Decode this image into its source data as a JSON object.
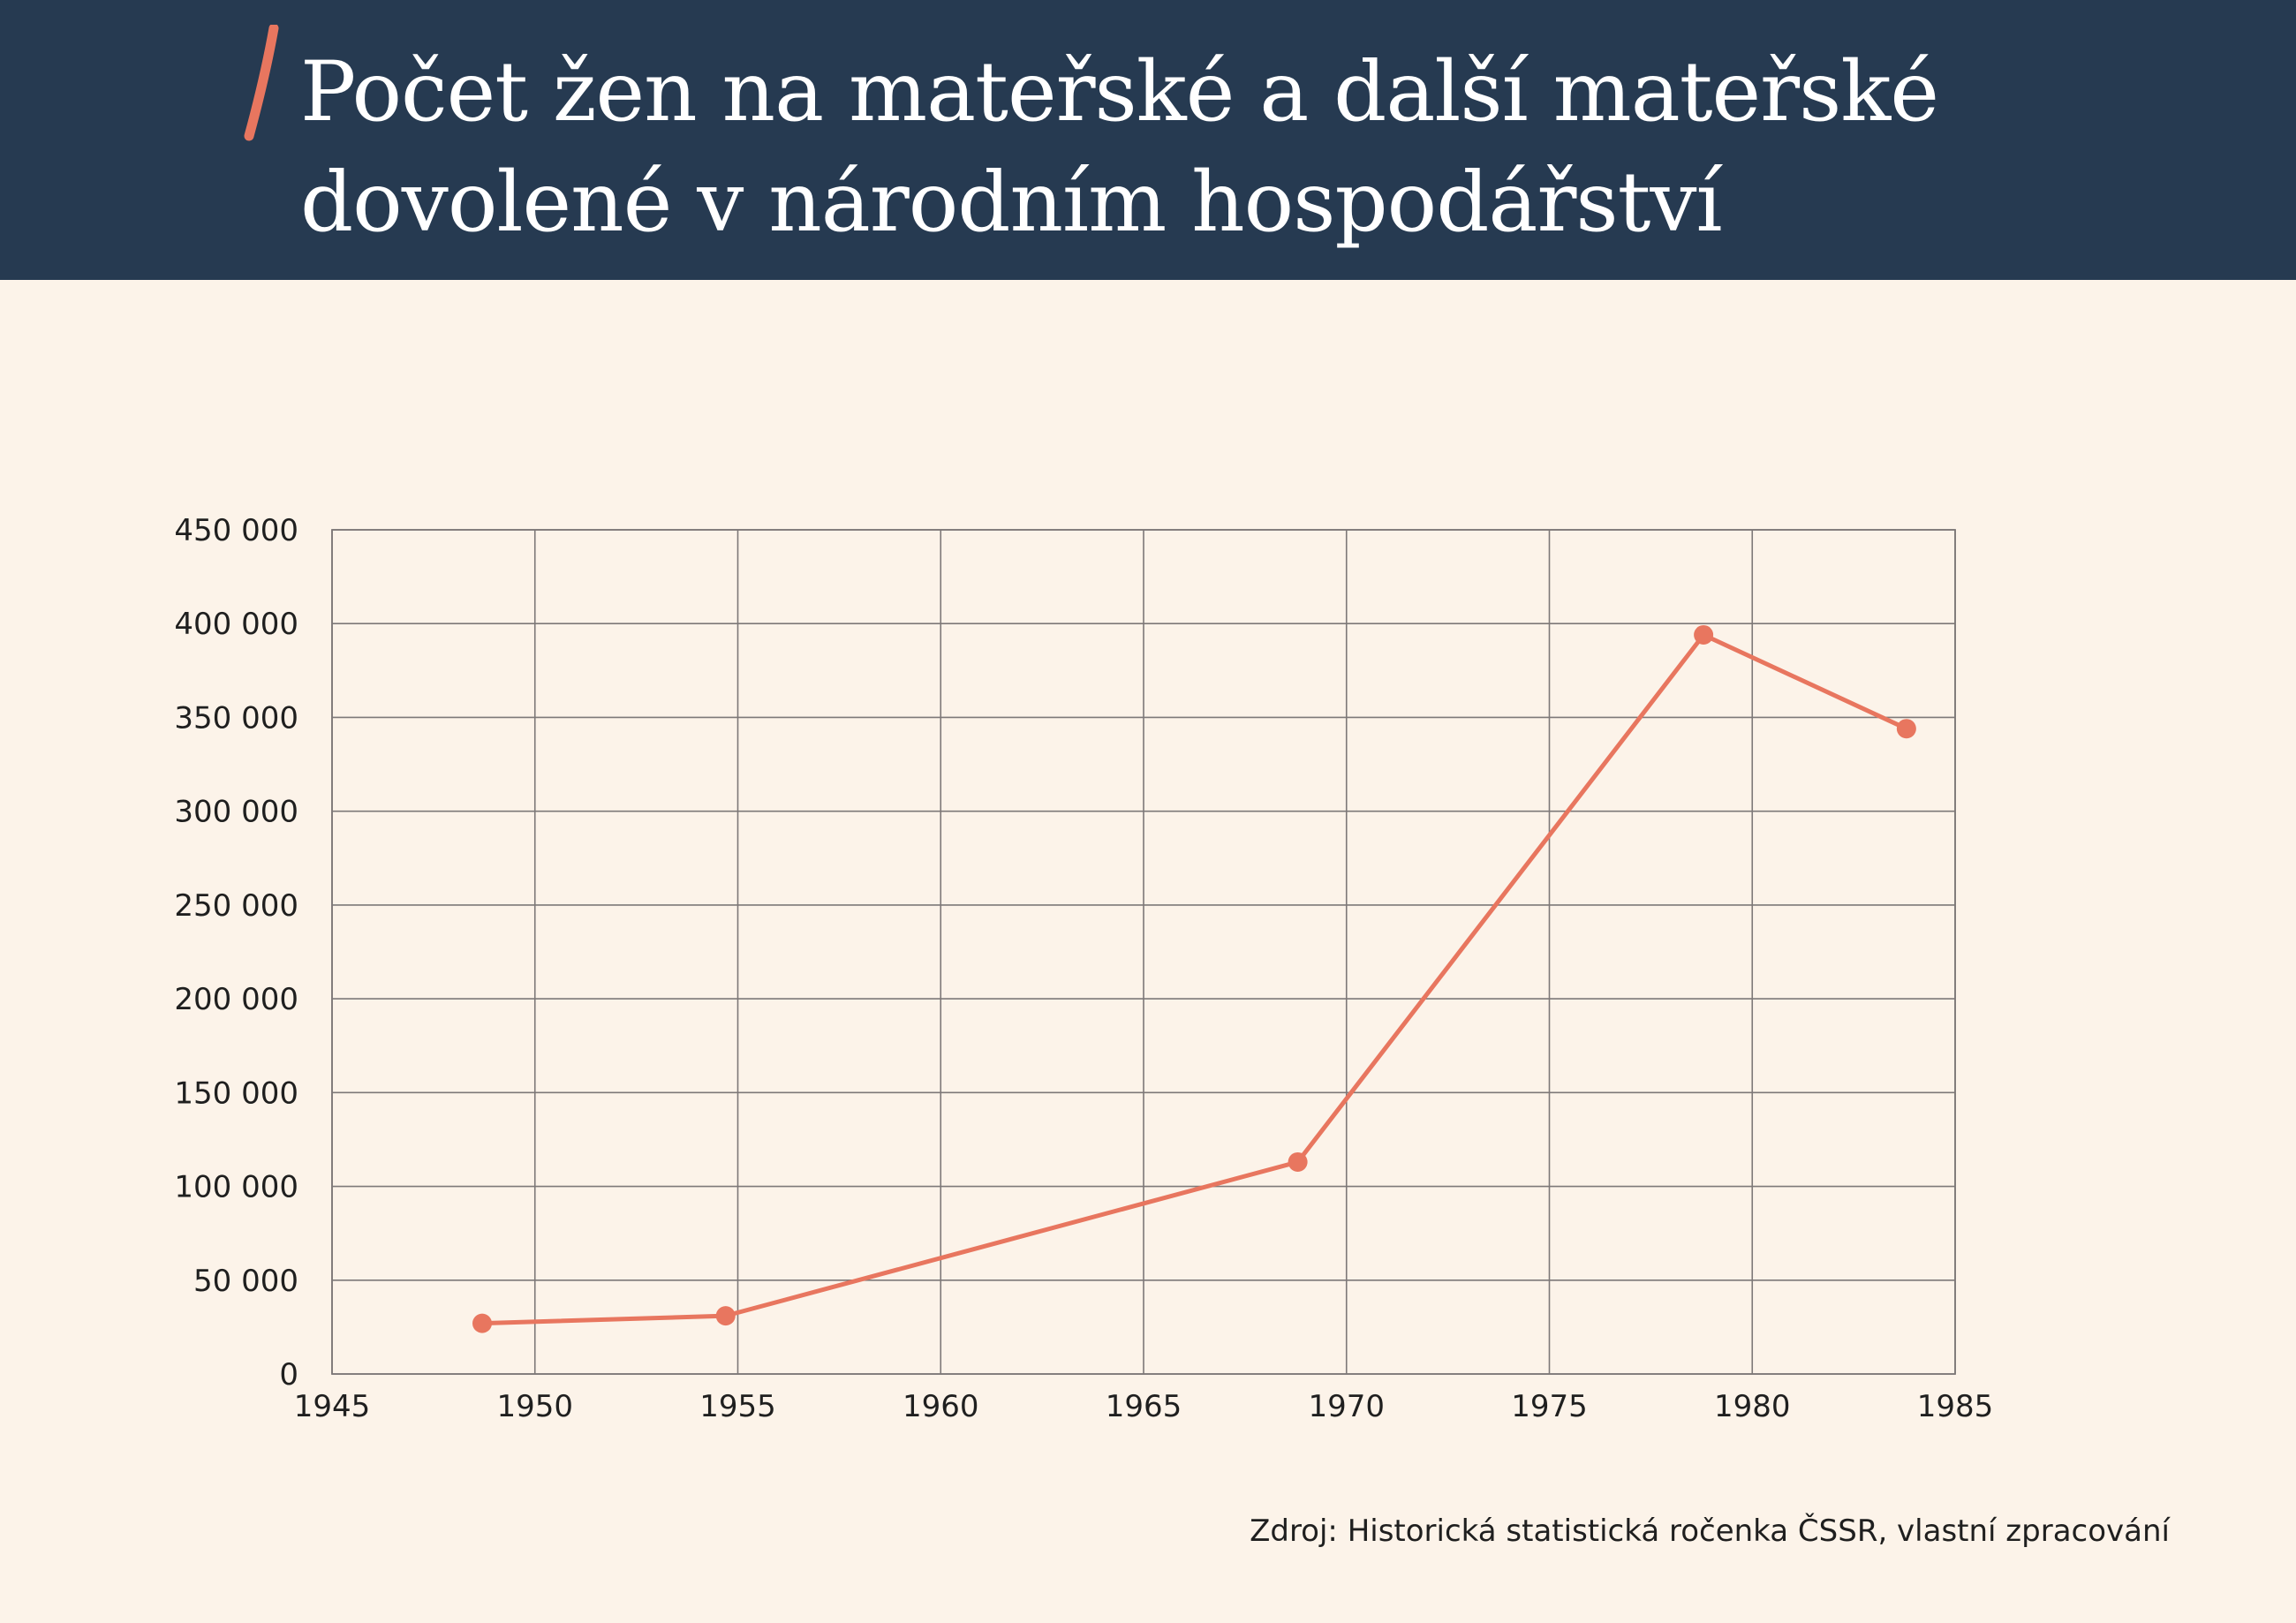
{
  "header": {
    "title_line1": "Počet žen na mateřské a další mateřské",
    "title_line2": "dovolené v národním hospodářství"
  },
  "colors": {
    "header_bg": "#263a51",
    "page_bg": "#fcf3e9",
    "accent": "#e8765f",
    "grid": "#7d7878"
  },
  "chart_data": {
    "type": "line",
    "title": "Počet žen na mateřské a další mateřské dovolené v národním hospodářství",
    "xlabel": "",
    "ylabel": "",
    "xlim": [
      1945,
      1985
    ],
    "ylim": [
      0,
      450000
    ],
    "x_ticks": [
      1945,
      1950,
      1955,
      1960,
      1965,
      1970,
      1975,
      1980,
      1985
    ],
    "x_tick_labels": [
      "1945",
      "1950",
      "1955",
      "1960",
      "1965",
      "1970",
      "1975",
      "1980",
      "1985"
    ],
    "y_ticks": [
      0,
      50000,
      100000,
      150000,
      200000,
      250000,
      300000,
      350000,
      400000,
      450000
    ],
    "y_tick_labels": [
      "0",
      "50 000",
      "100 000",
      "150 000",
      "200 000",
      "250 000",
      "300 000",
      "350 000",
      "400 000",
      "450 000"
    ],
    "grid": true,
    "legend": "none",
    "series": [
      {
        "color": "#e8765f",
        "points": [
          {
            "x": 1948.7,
            "y": 27000
          },
          {
            "x": 1954.7,
            "y": 31000
          },
          {
            "x": 1968.8,
            "y": 113000
          },
          {
            "x": 1978.8,
            "y": 394000
          },
          {
            "x": 1983.8,
            "y": 344000
          }
        ]
      }
    ]
  },
  "footer": {
    "source": "Zdroj: Historická statistická ročenka ČSSR, vlastní zpracování"
  }
}
